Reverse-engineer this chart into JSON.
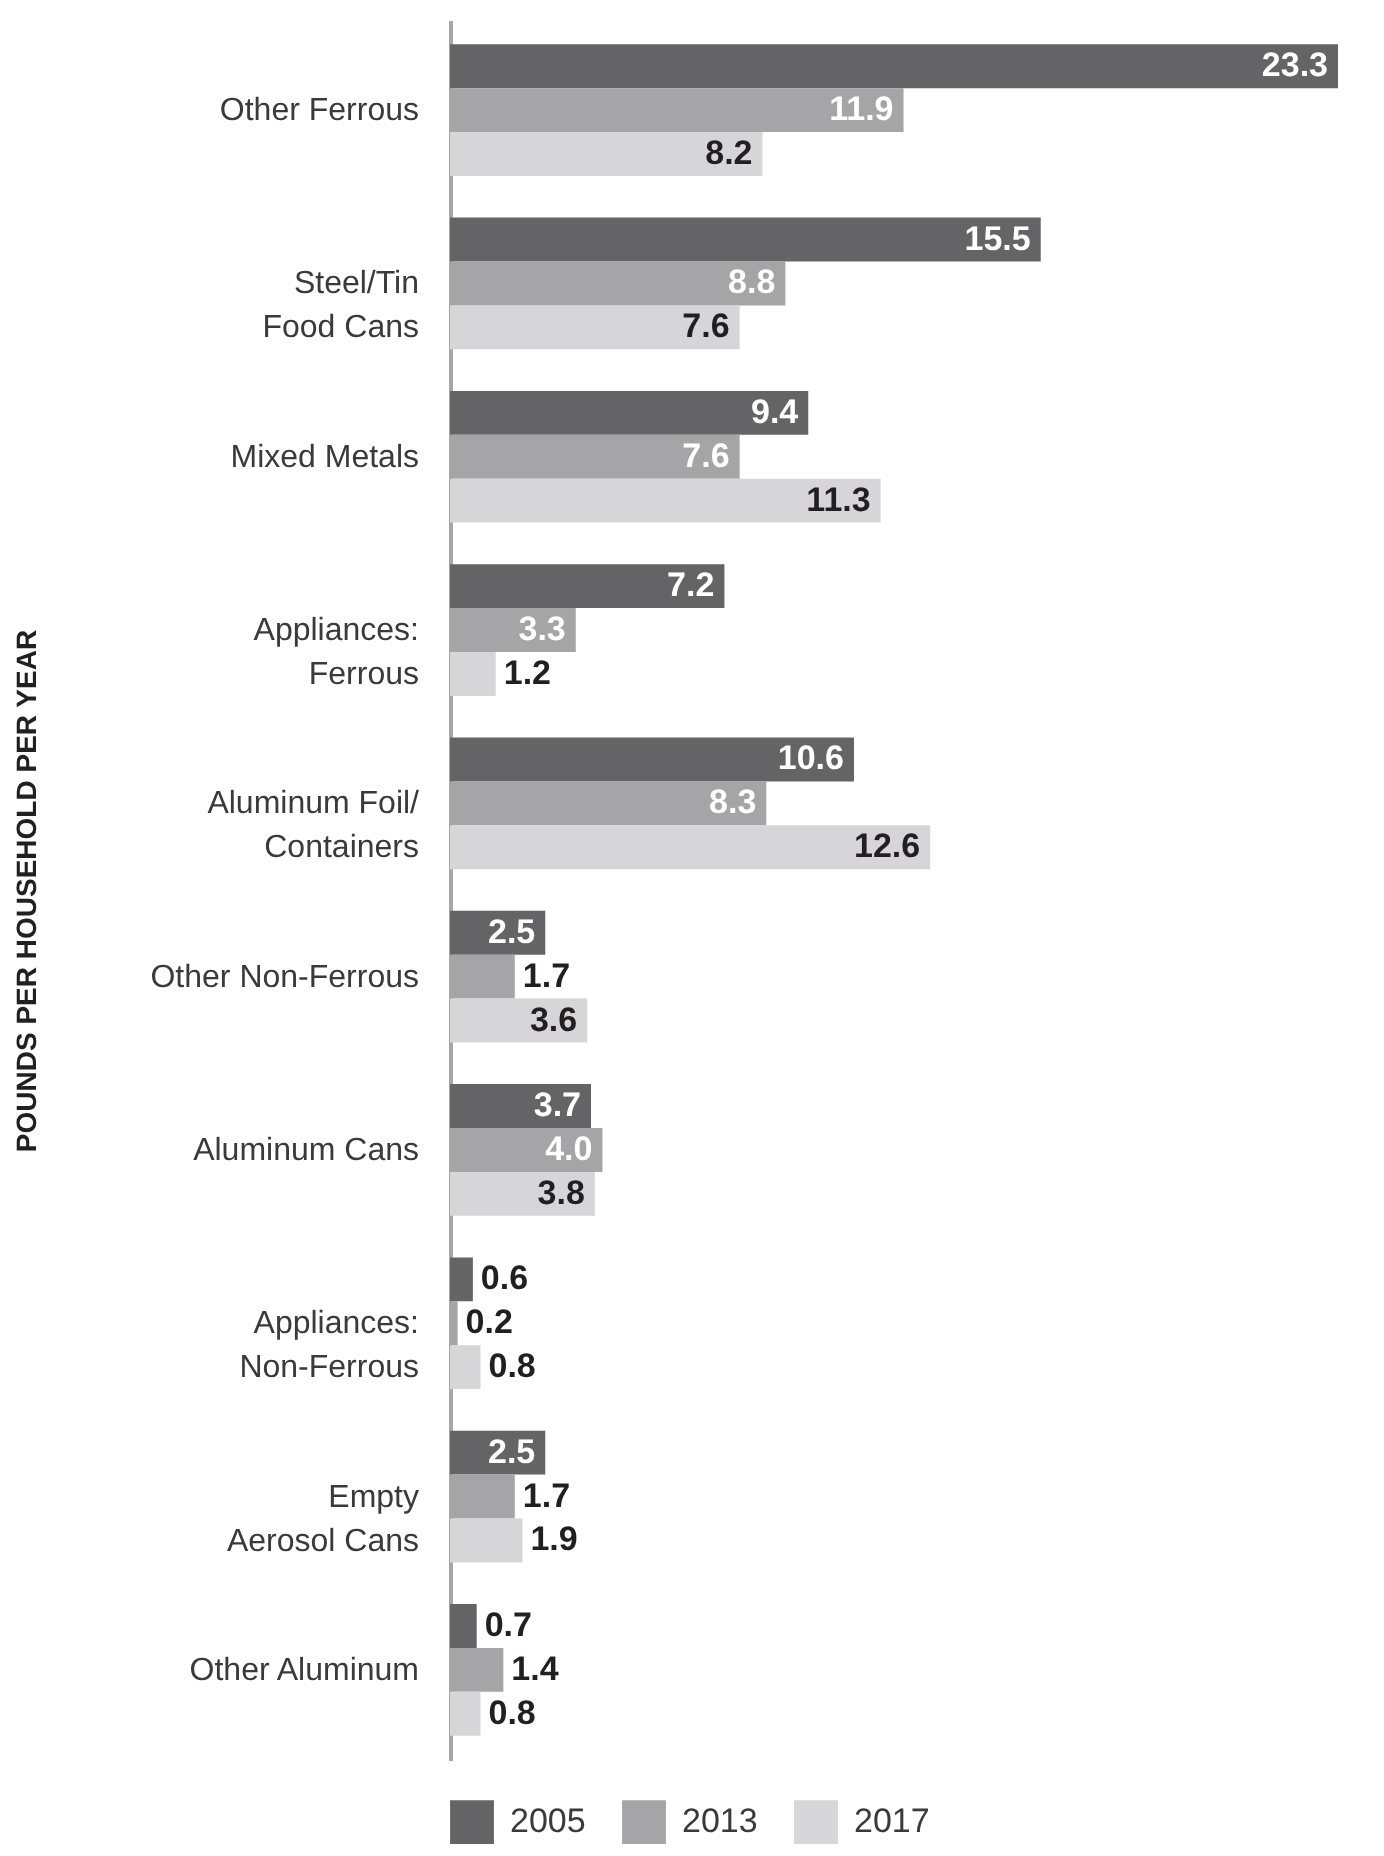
{
  "chart_data": {
    "type": "bar",
    "orientation": "horizontal",
    "ylabel": "POUNDS PER HOUSEHOLD PER YEAR",
    "categories": [
      "Other Ferrous",
      "Steel/Tin\nFood Cans",
      "Mixed Metals",
      "Appliances:\nFerrous",
      "Aluminum Foil/\nContainers",
      "Other Non-Ferrous",
      "Aluminum Cans",
      "Appliances:\nNon-Ferrous",
      "Empty\nAerosol Cans",
      "Other Aluminum"
    ],
    "series": [
      {
        "name": "2005",
        "color": "#646467",
        "values": [
          23.3,
          15.5,
          9.4,
          7.2,
          10.6,
          2.5,
          3.7,
          0.6,
          2.5,
          0.7
        ],
        "value_labels": [
          "23.3",
          "15.5",
          "9.4",
          "7.2",
          "10.6",
          "2.5",
          "3.7",
          "0.6",
          "2.5",
          "0.7"
        ]
      },
      {
        "name": "2013",
        "color": "#a5a5a8",
        "values": [
          11.9,
          8.8,
          7.6,
          3.3,
          8.3,
          1.7,
          4.0,
          0.2,
          1.7,
          1.4
        ],
        "value_labels": [
          "11.9",
          "8.8",
          "7.6",
          "3.3",
          "8.3",
          "1.7",
          "4.0",
          "0.2",
          "1.7",
          "1.4"
        ]
      },
      {
        "name": "2017",
        "color": "#d6d6d8",
        "values": [
          8.2,
          7.6,
          11.3,
          1.2,
          12.6,
          3.6,
          3.8,
          0.8,
          1.9,
          0.8
        ],
        "value_labels": [
          "8.2",
          "7.6",
          "11.3",
          "1.2",
          "12.6",
          "3.6",
          "3.8",
          "0.8",
          "1.9",
          "0.8"
        ]
      }
    ],
    "legend": "bottom"
  }
}
